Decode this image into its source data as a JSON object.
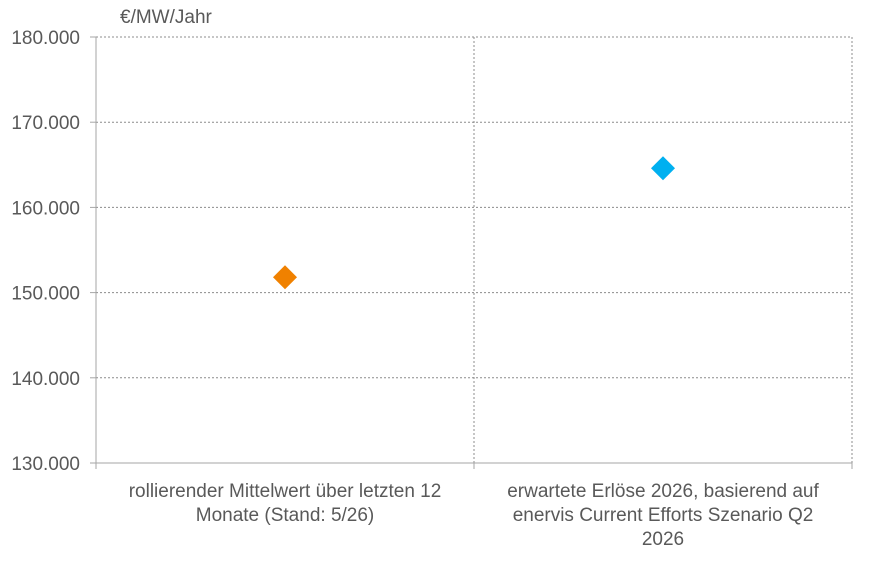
{
  "chart_data": {
    "type": "scatter",
    "title": "",
    "xlabel": "",
    "ylabel": "€/MW/Jahr",
    "ylim": [
      130000,
      180000
    ],
    "yticks": [
      130000,
      140000,
      150000,
      160000,
      170000,
      180000
    ],
    "ytick_labels": [
      "130.000",
      "140.000",
      "150.000",
      "160.000",
      "170.000",
      "180.000"
    ],
    "categories": [
      [
        "rollierender Mittelwert über letzten 12",
        "Monate (Stand: 5/26)"
      ],
      [
        "erwartete Erlöse 2026, basierend auf",
        "enervis Current Efforts Szenario Q2",
        "2026"
      ]
    ],
    "points": [
      {
        "category_index": 0,
        "value": 151800,
        "color": "#F08100",
        "marker": "diamond"
      },
      {
        "category_index": 1,
        "value": 164600,
        "color": "#00B0F0",
        "marker": "diamond"
      }
    ],
    "grid": true,
    "legend": "none"
  }
}
